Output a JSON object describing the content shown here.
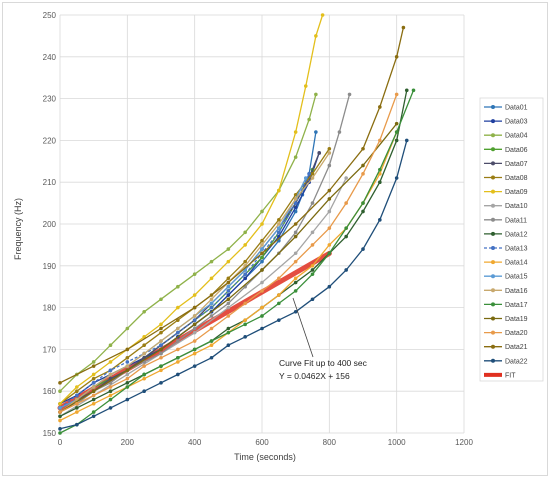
{
  "chart_data": {
    "type": "line",
    "title": "",
    "xlabel": "Time (seconds)",
    "ylabel": "Frequency (Hz)",
    "xlim": [
      0,
      1200
    ],
    "ylim": [
      150,
      250
    ],
    "xticks": [
      "0",
      "200",
      "400",
      "600",
      "800",
      "1000",
      "1200"
    ],
    "yticks": [
      "150",
      "160",
      "170",
      "180",
      "190",
      "200",
      "210",
      "220",
      "230",
      "240",
      "250"
    ],
    "grid": true,
    "legend_position": "right",
    "annotation": {
      "line1": "Curve Fit up to 400 sec",
      "line2": "Y = 0.0462X + 156"
    },
    "fit": {
      "name": "FIT",
      "slope": 0.0462,
      "intercept": 156,
      "x_range": [
        0,
        800
      ],
      "color": "#e03020"
    },
    "series": [
      {
        "name": "Data01",
        "color": "#2e75b6",
        "x": [
          0,
          50,
          100,
          150,
          200,
          250,
          300,
          350,
          400,
          450,
          500,
          550,
          600,
          650,
          700,
          720,
          740,
          760
        ],
        "y": [
          156,
          158,
          161,
          163,
          165,
          168,
          170,
          173,
          176,
          179,
          183,
          187,
          191,
          196,
          203,
          207,
          212,
          222
        ]
      },
      {
        "name": "Data03",
        "color": "#1f3f9f",
        "x": [
          0,
          50,
          100,
          150,
          200,
          250,
          300,
          350,
          400,
          450,
          500,
          550,
          600,
          650,
          700,
          740,
          770
        ],
        "y": [
          157,
          159,
          162,
          164,
          166,
          168,
          170,
          173,
          176,
          179,
          183,
          187,
          192,
          197,
          204,
          210,
          217
        ]
      },
      {
        "name": "Data04",
        "color": "#8fb24a",
        "x": [
          0,
          50,
          100,
          150,
          200,
          250,
          300,
          350,
          400,
          450,
          500,
          550,
          600,
          650,
          700,
          740,
          760
        ],
        "y": [
          160,
          164,
          167,
          171,
          175,
          179,
          182,
          185,
          188,
          191,
          194,
          198,
          203,
          208,
          216,
          225,
          231
        ]
      },
      {
        "name": "Data06",
        "color": "#4fa02f",
        "x": [
          0,
          50,
          100,
          150,
          200,
          250,
          300,
          350,
          400,
          450,
          500,
          550,
          600,
          650,
          700,
          750
        ],
        "y": [
          155,
          158,
          161,
          163,
          165,
          168,
          171,
          174,
          177,
          180,
          184,
          188,
          192,
          198,
          205,
          213
        ]
      },
      {
        "name": "Data07",
        "color": "#4d4d6a",
        "x": [
          0,
          50,
          100,
          150,
          200,
          250,
          300,
          350,
          400,
          450,
          500,
          550,
          600,
          650,
          700,
          740,
          770
        ],
        "y": [
          155,
          158,
          160,
          163,
          165,
          168,
          171,
          174,
          177,
          181,
          185,
          189,
          194,
          199,
          205,
          211,
          217
        ]
      },
      {
        "name": "Data08",
        "color": "#9a7d14",
        "x": [
          0,
          50,
          100,
          150,
          200,
          250,
          300,
          350,
          400,
          450,
          500,
          550,
          600,
          650,
          700,
          750,
          800
        ],
        "y": [
          157,
          160,
          163,
          165,
          168,
          171,
          174,
          177,
          180,
          183,
          187,
          191,
          196,
          201,
          207,
          212,
          218
        ]
      },
      {
        "name": "Data09",
        "color": "#e3bf1b",
        "x": [
          0,
          50,
          100,
          150,
          200,
          250,
          300,
          350,
          400,
          450,
          500,
          550,
          600,
          650,
          700,
          730,
          760,
          780
        ],
        "y": [
          157,
          161,
          164,
          167,
          170,
          173,
          176,
          180,
          183,
          187,
          191,
          195,
          200,
          208,
          222,
          233,
          245,
          250
        ]
      },
      {
        "name": "Data10",
        "color": "#a5a5a5",
        "x": [
          0,
          100,
          200,
          300,
          400,
          500,
          600,
          700,
          750,
          800,
          850
        ],
        "y": [
          154,
          159,
          164,
          169,
          174,
          180,
          186,
          193,
          198,
          203,
          211
        ]
      },
      {
        "name": "Data11",
        "color": "#8c8c8c",
        "x": [
          0,
          50,
          100,
          150,
          200,
          250,
          300,
          350,
          400,
          450,
          500,
          550,
          600,
          650,
          700,
          750,
          800,
          830,
          860
        ],
        "y": [
          155,
          157,
          160,
          162,
          165,
          167,
          169,
          172,
          175,
          178,
          181,
          185,
          189,
          193,
          198,
          205,
          214,
          222,
          231
        ]
      },
      {
        "name": "Data12",
        "color": "#2f5f2f",
        "x": [
          0,
          50,
          100,
          150,
          200,
          250,
          300,
          350,
          400,
          450,
          500,
          550,
          600,
          650,
          700,
          750,
          800,
          850,
          900,
          950,
          1000,
          1030
        ],
        "y": [
          154,
          156,
          158,
          160,
          162,
          164,
          166,
          168,
          170,
          172,
          175,
          177,
          180,
          183,
          186,
          189,
          193,
          197,
          203,
          210,
          220,
          232
        ]
      },
      {
        "name": "Data13",
        "color": "#4472c4",
        "dashed": true,
        "x": [
          0,
          50,
          100,
          150,
          200,
          250,
          300,
          350,
          400,
          450,
          500,
          550,
          600,
          650,
          700,
          740
        ],
        "y": [
          156,
          159,
          162,
          165,
          167,
          169,
          171,
          174,
          177,
          180,
          184,
          188,
          193,
          198,
          205,
          212
        ]
      },
      {
        "name": "Data14",
        "color": "#f0a830",
        "x": [
          0,
          50,
          100,
          150,
          200,
          250,
          300,
          350,
          400,
          450,
          500,
          550,
          600,
          650,
          700,
          750,
          800,
          850,
          900,
          950,
          1000
        ],
        "y": [
          153,
          155,
          157,
          159,
          161,
          163,
          165,
          167,
          169,
          171,
          174,
          177,
          180,
          183,
          187,
          190,
          195,
          199,
          205,
          212,
          222
        ]
      },
      {
        "name": "Data15",
        "color": "#5b9bd5",
        "x": [
          0,
          50,
          100,
          150,
          200,
          250,
          300,
          350,
          400,
          450,
          500,
          550,
          600,
          650,
          700,
          730
        ],
        "y": [
          156,
          158,
          161,
          164,
          166,
          169,
          172,
          175,
          178,
          181,
          185,
          189,
          194,
          199,
          206,
          211
        ]
      },
      {
        "name": "Data16",
        "color": "#c8a96e",
        "x": [
          0,
          50,
          100,
          150,
          200,
          250,
          300,
          350,
          400,
          450,
          500,
          550,
          600,
          650,
          700,
          750,
          800
        ],
        "y": [
          155,
          158,
          161,
          164,
          166,
          169,
          172,
          175,
          178,
          182,
          186,
          190,
          195,
          200,
          206,
          211,
          217
        ]
      },
      {
        "name": "Data17",
        "color": "#3a8f3a",
        "x": [
          0,
          50,
          100,
          150,
          200,
          250,
          300,
          350,
          400,
          450,
          500,
          550,
          600,
          650,
          700,
          750,
          800,
          850,
          900,
          950,
          1000,
          1050
        ],
        "y": [
          150,
          152,
          155,
          158,
          161,
          164,
          166,
          168,
          170,
          172,
          174,
          176,
          178,
          181,
          184,
          188,
          193,
          199,
          205,
          213,
          222,
          232
        ]
      },
      {
        "name": "Data19",
        "color": "#7a6a10",
        "x": [
          0,
          100,
          200,
          300,
          400,
          500,
          600,
          700,
          800,
          900,
          1000
        ],
        "y": [
          155,
          160,
          165,
          170,
          176,
          182,
          189,
          197,
          206,
          214,
          224
        ]
      },
      {
        "name": "Data20",
        "color": "#e89a4a",
        "x": [
          0,
          50,
          100,
          150,
          200,
          250,
          300,
          350,
          400,
          450,
          500,
          550,
          600,
          650,
          700,
          750,
          800,
          850,
          900,
          950,
          1000
        ],
        "y": [
          155,
          157,
          159,
          161,
          163,
          166,
          168,
          170,
          172,
          175,
          178,
          181,
          184,
          187,
          191,
          195,
          199,
          205,
          212,
          220,
          231
        ]
      },
      {
        "name": "Data21",
        "color": "#8a6d10",
        "x": [
          0,
          100,
          200,
          300,
          400,
          500,
          600,
          700,
          800,
          900,
          950,
          1000,
          1020
        ],
        "y": [
          162,
          166,
          170,
          175,
          180,
          186,
          193,
          200,
          208,
          218,
          228,
          240,
          247
        ]
      },
      {
        "name": "Data22",
        "color": "#1f4e79",
        "x": [
          0,
          50,
          100,
          150,
          200,
          250,
          300,
          350,
          400,
          450,
          500,
          550,
          600,
          650,
          700,
          750,
          800,
          850,
          900,
          950,
          1000,
          1030
        ],
        "y": [
          151,
          152,
          154,
          156,
          158,
          160,
          162,
          164,
          166,
          168,
          171,
          173,
          175,
          177,
          179,
          182,
          185,
          189,
          194,
          201,
          211,
          220
        ]
      }
    ]
  }
}
